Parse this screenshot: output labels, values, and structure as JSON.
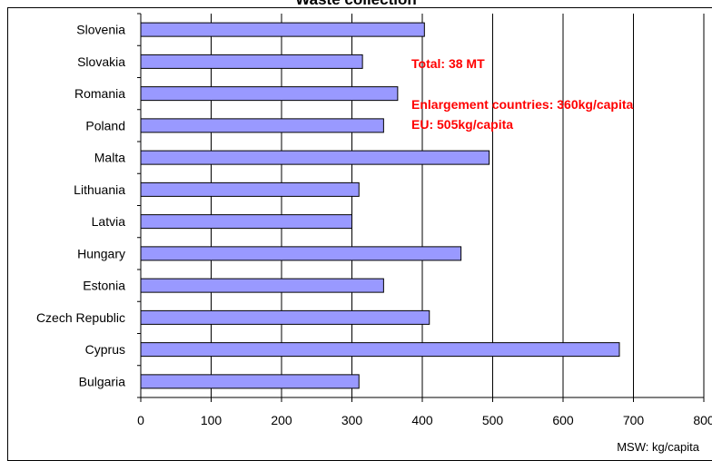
{
  "chart_data": {
    "type": "bar",
    "orientation": "horizontal",
    "title": "Waste collection",
    "xlabel": "MSW: kg/capita",
    "xlim": [
      0,
      800
    ],
    "xticks": [
      0,
      100,
      200,
      300,
      400,
      500,
      600,
      700,
      800
    ],
    "grid": "vertical",
    "categories": [
      "Slovenia",
      "Slovakia",
      "Romania",
      "Poland",
      "Malta",
      "Lithuania",
      "Latvia",
      "Hungary",
      "Estonia",
      "Czech Republic",
      "Cyprus",
      "Bulgaria"
    ],
    "values": [
      403,
      315,
      365,
      345,
      495,
      310,
      300,
      455,
      345,
      410,
      680,
      310
    ],
    "bar_color": "#9999ff",
    "annotations": [
      "Total: 38 MT",
      "Enlargement countries: 360kg/capita",
      "EU: 505kg/capita"
    ],
    "annotation_color": "#ff0000"
  }
}
